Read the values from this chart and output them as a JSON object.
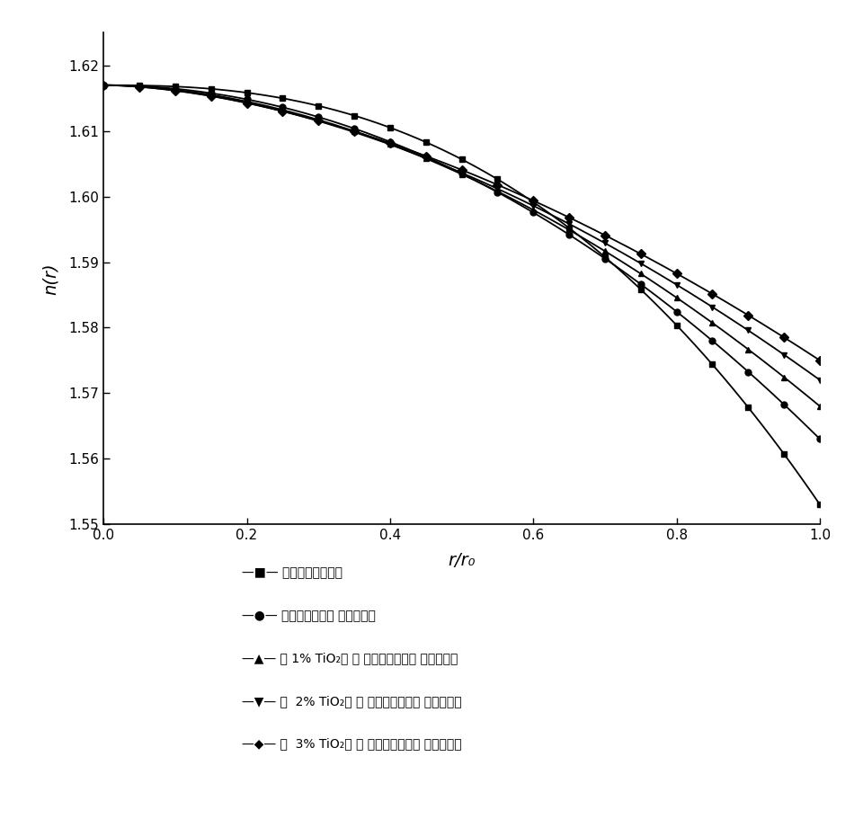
{
  "xlabel": "r/r₀",
  "ylabel": "n(r)",
  "xlim": [
    0.0,
    1.0
  ],
  "ylim": [
    1.55,
    1.625
  ],
  "yticks": [
    1.55,
    1.56,
    1.57,
    1.58,
    1.59,
    1.6,
    1.61,
    1.62
  ],
  "xticks": [
    0.0,
    0.2,
    0.4,
    0.6,
    0.8,
    1.0
  ],
  "n0": 1.617,
  "markers": [
    "s",
    "o",
    "^",
    "v",
    "D"
  ],
  "n_edges": [
    1.553,
    1.563,
    1.568,
    1.572,
    1.575
  ],
  "exponents": [
    2.5,
    2.0,
    1.85,
    1.75,
    1.7
  ],
  "legend_lines": [
    "—■— 理想的屈射率分布",
    "—●— 一次高子交联层 屈射率分布",
    "—▲— 用 1% TiO₂进 行 二次高子交联层 屈射率分布",
    "—▼— 用  2% TiO₂进 行 二次高子交联层 屈射率分布",
    "—◆— 用  3% TiO₂进 行 二次高子交联层 屈射率分布"
  ],
  "background_color": "#ffffff"
}
